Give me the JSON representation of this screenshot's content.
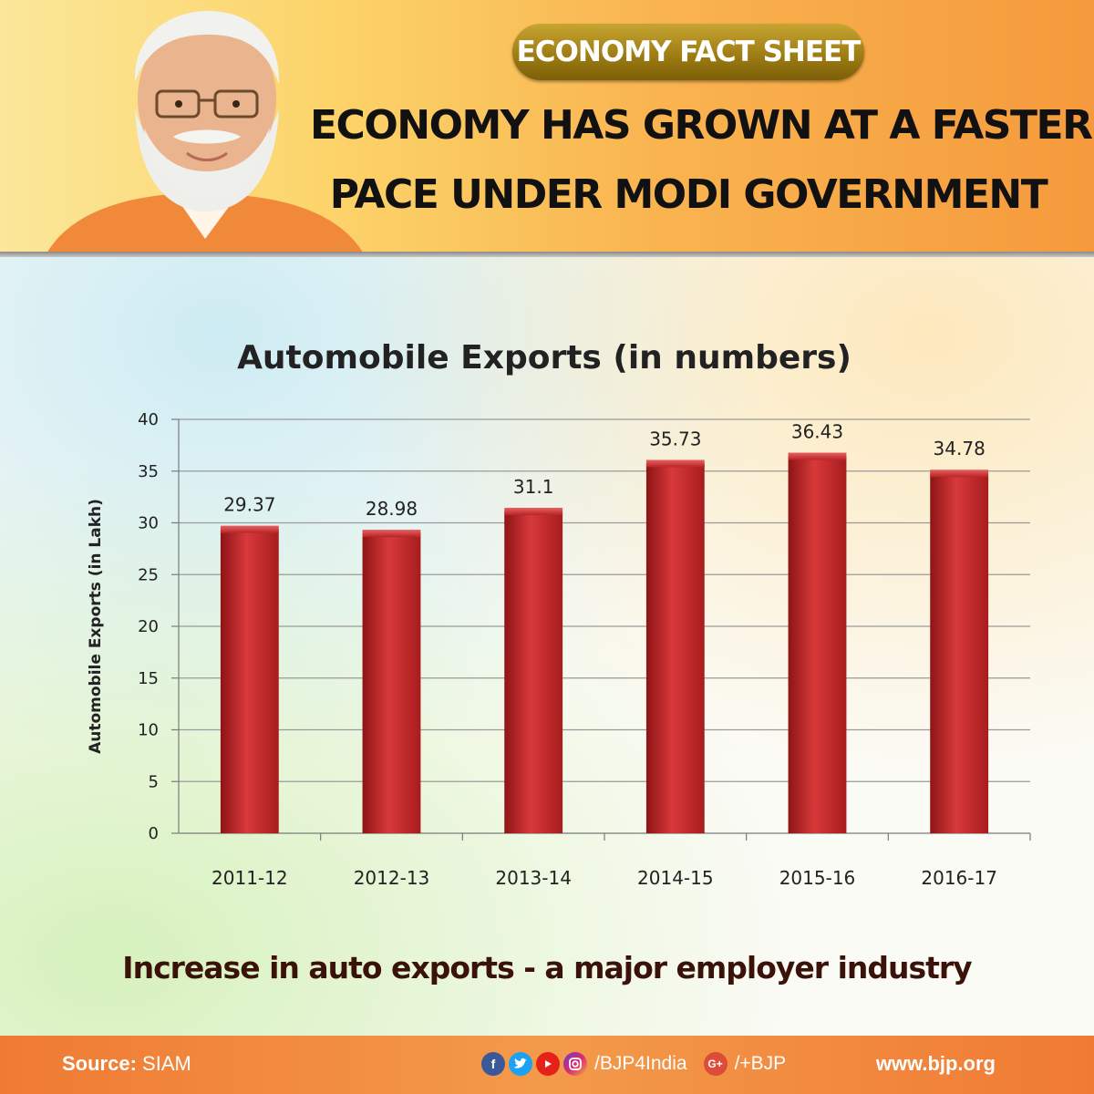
{
  "header": {
    "badge": "ECONOMY FACT SHEET",
    "headline_line1": "ECONOMY HAS GROWN AT A FASTER",
    "headline_line2": "PACE UNDER MODI GOVERNMENT"
  },
  "caption": "Increase in auto exports - a major employer industry",
  "footer": {
    "source_label": "Source:",
    "source_value": "SIAM",
    "social_handle": "/BJP4India",
    "gplus_handle": "/+BJP",
    "website": "www.bjp.org"
  },
  "icons": [
    "facebook-icon",
    "twitter-icon",
    "youtube-icon",
    "instagram-icon",
    "google-plus-icon"
  ],
  "colors": {
    "bar": "#c8282c",
    "badge": "#a9880f",
    "footer": "#f07a34"
  },
  "chart_data": {
    "type": "bar",
    "title": "Automobile Exports (in numbers)",
    "ylabel": "Automobile Exports  (in Lakh)",
    "xlabel": "",
    "categories": [
      "2011-12",
      "2012-13",
      "2013-14",
      "2014-15",
      "2015-16",
      "2016-17"
    ],
    "values": [
      29.37,
      28.98,
      31.1,
      35.73,
      36.43,
      34.78
    ],
    "data_labels": [
      "29.37",
      "28.98",
      "31.1",
      "35.73",
      "36.43",
      "34.78"
    ],
    "ylim": [
      0,
      40
    ],
    "yticks": [
      0,
      5,
      10,
      15,
      20,
      25,
      30,
      35,
      40
    ],
    "grid": true,
    "legend": "none"
  }
}
